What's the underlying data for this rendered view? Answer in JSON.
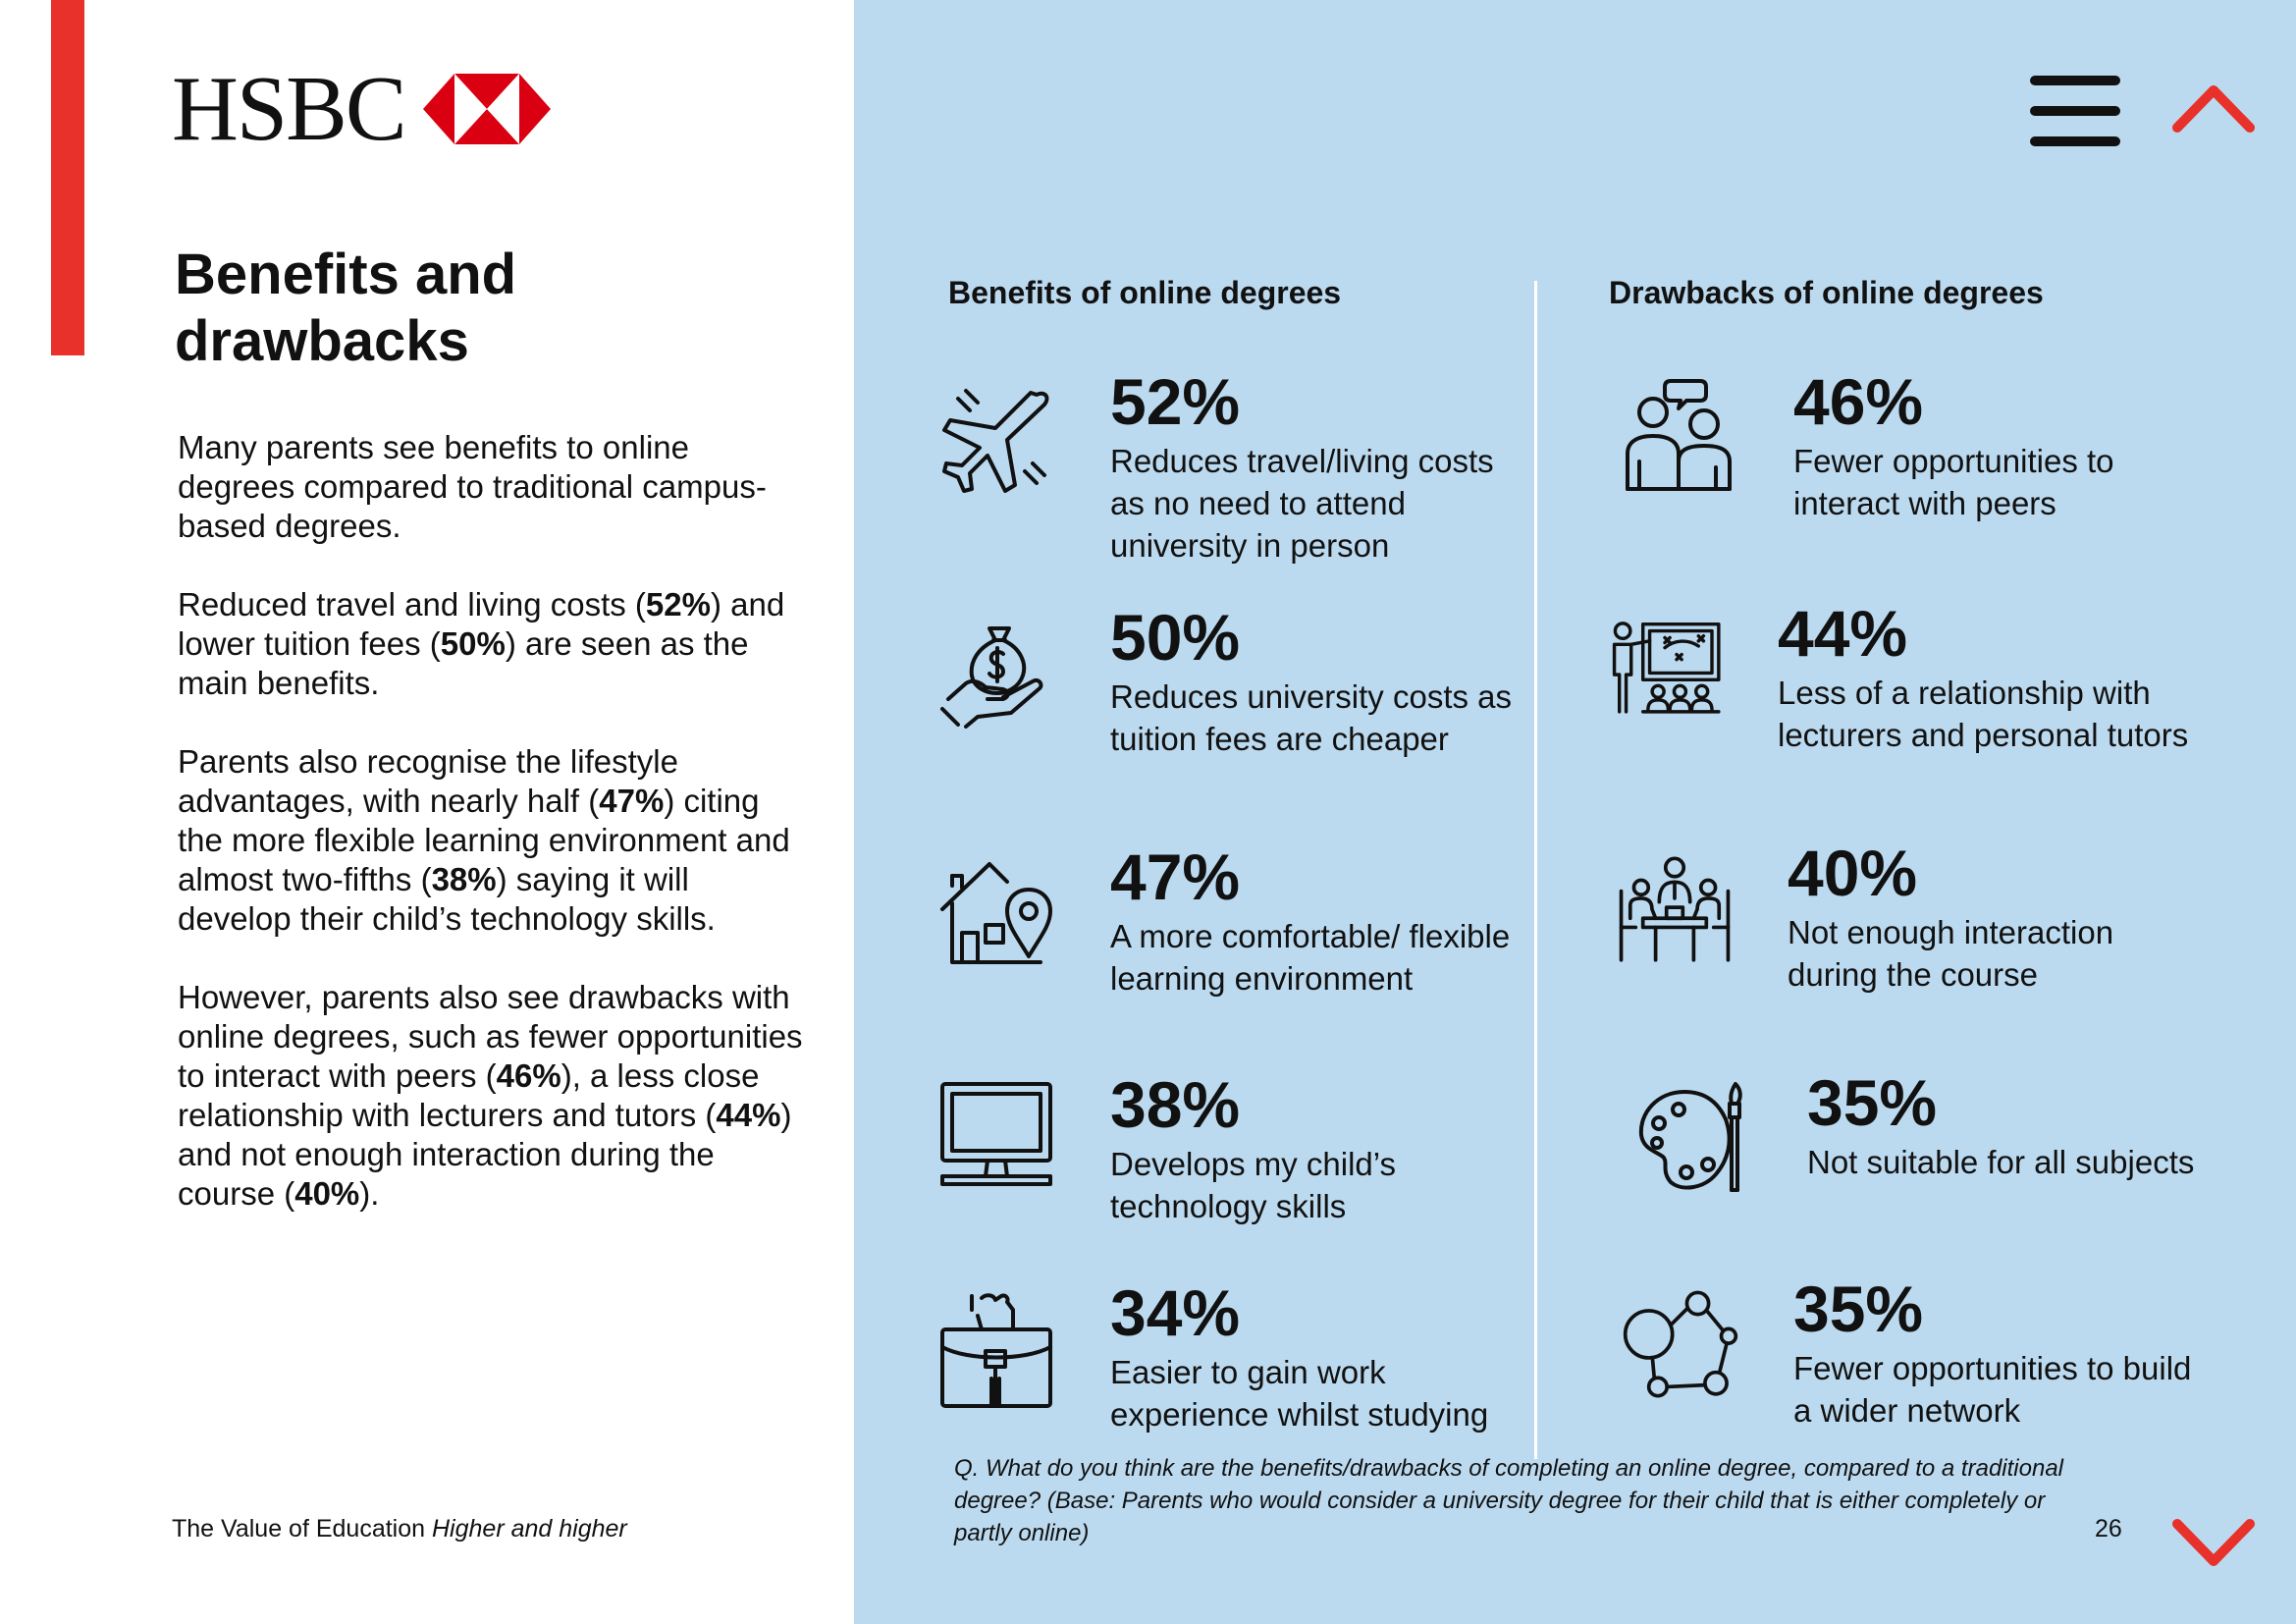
{
  "brand": {
    "name": "HSBC",
    "accent": "#e8312a",
    "panel_bg": "#bcdaef"
  },
  "nav": {
    "menu_icon": "hamburger-menu-icon",
    "prev_icon": "chevron-up-icon",
    "next_icon": "chevron-down-icon"
  },
  "left": {
    "title": "Benefits and drawbacks",
    "paragraphs": [
      [
        "Many parents see benefits to online degrees compared to traditional campus-based degrees."
      ],
      [
        "Reduced travel and living costs (",
        "52%",
        ") and lower tuition fees (",
        "50%",
        ") are seen as the main benefits."
      ],
      [
        "Parents also recognise the lifestyle advantages, with nearly half (",
        "47%",
        ") citing the more flexible learning environment and almost two-fifths (",
        "38%",
        ") saying it will develop their child’s technology skills."
      ],
      [
        "However, parents also see drawbacks with online degrees, such as fewer opportunities to interact with peers (",
        "46%",
        "), a less close relationship with lecturers and tutors (",
        "44%",
        ") and not enough interaction during the course (",
        "40%",
        ")."
      ]
    ]
  },
  "benefits": {
    "heading": "Benefits of online degrees",
    "items": [
      {
        "pct": "52%",
        "label": "Reduces travel/living costs as no need to attend university in person",
        "icon": "airplane-icon"
      },
      {
        "pct": "50%",
        "label": "Reduces university costs as tuition fees are cheaper",
        "icon": "money-bag-hand-icon"
      },
      {
        "pct": "47%",
        "label": "A more comfortable/ flexible learning environment",
        "icon": "house-location-icon"
      },
      {
        "pct": "38%",
        "label": "Develops my child’s technology skills",
        "icon": "computer-monitor-icon"
      },
      {
        "pct": "34%",
        "label": "Easier to gain work experience whilst studying",
        "icon": "briefcase-icon"
      }
    ]
  },
  "drawbacks": {
    "heading": "Drawbacks of online degrees",
    "items": [
      {
        "pct": "46%",
        "label": "Fewer opportunities to interact with peers",
        "icon": "two-people-chat-icon"
      },
      {
        "pct": "44%",
        "label": "Less of a relationship with lecturers and personal tutors",
        "icon": "lecturer-board-icon"
      },
      {
        "pct": "40%",
        "label": "Not enough interaction during the course",
        "icon": "meeting-table-icon"
      },
      {
        "pct": "35%",
        "label": "Not suitable for all subjects",
        "icon": "paint-palette-icon"
      },
      {
        "pct": "35%",
        "label": "Fewer opportunities to build a wider network",
        "icon": "network-nodes-icon"
      }
    ]
  },
  "footnote": "Q. What do you think are the benefits/drawbacks of completing an online degree, compared to a traditional degree? (Base: Parents who would consider a university degree for their child that is either completely or partly online)",
  "footer": {
    "publication": "The Value of Education",
    "subtitle": "Higher and higher",
    "page": "26"
  }
}
